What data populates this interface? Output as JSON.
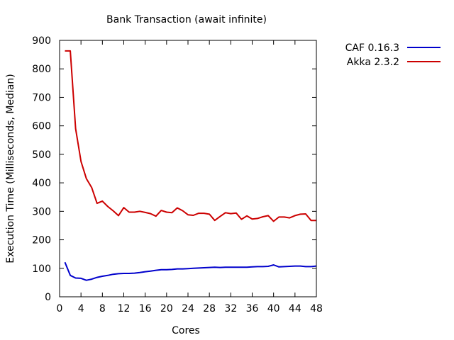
{
  "chart_data": {
    "type": "line",
    "title": "Bank Transaction (await infinite)",
    "xlabel": "Cores",
    "ylabel": "Execution Time (Milliseconds, Median)",
    "xlim": [
      0,
      48
    ],
    "ylim": [
      0,
      900
    ],
    "xticks": [
      0,
      4,
      8,
      12,
      16,
      20,
      24,
      28,
      32,
      36,
      40,
      44,
      48
    ],
    "yticks": [
      0,
      100,
      200,
      300,
      400,
      500,
      600,
      700,
      800,
      900
    ],
    "grid": false,
    "legend_position": "outside-top-right",
    "series": [
      {
        "name": "CAF 0.16.3",
        "color": "#0000cc",
        "x": [
          1,
          2,
          3,
          4,
          5,
          6,
          7,
          8,
          9,
          10,
          11,
          12,
          13,
          14,
          15,
          16,
          17,
          18,
          19,
          20,
          21,
          22,
          23,
          24,
          25,
          26,
          27,
          28,
          29,
          30,
          31,
          32,
          33,
          34,
          35,
          36,
          37,
          38,
          39,
          40,
          41,
          42,
          43,
          44,
          45,
          46,
          47,
          48
        ],
        "y": [
          121,
          75,
          66,
          65,
          58,
          62,
          68,
          72,
          75,
          79,
          81,
          82,
          82,
          83,
          85,
          88,
          90,
          93,
          95,
          95,
          96,
          98,
          98,
          99,
          100,
          101,
          102,
          103,
          104,
          103,
          104,
          104,
          104,
          104,
          104,
          105,
          106,
          106,
          107,
          112,
          105,
          106,
          107,
          108,
          108,
          106,
          106,
          108
        ]
      },
      {
        "name": "Akka 2.3.2",
        "color": "#cc0000",
        "x": [
          1,
          2,
          3,
          4,
          5,
          6,
          7,
          8,
          9,
          10,
          11,
          12,
          13,
          14,
          15,
          16,
          17,
          18,
          19,
          20,
          21,
          22,
          23,
          24,
          25,
          26,
          27,
          28,
          29,
          30,
          31,
          32,
          33,
          34,
          35,
          36,
          37,
          38,
          39,
          40,
          41,
          42,
          43,
          44,
          45,
          46,
          47,
          48
        ],
        "y": [
          863,
          863,
          590,
          475,
          415,
          383,
          328,
          336,
          317,
          302,
          285,
          313,
          297,
          297,
          300,
          296,
          292,
          283,
          303,
          297,
          295,
          312,
          302,
          288,
          286,
          293,
          293,
          290,
          268,
          282,
          295,
          292,
          294,
          272,
          284,
          273,
          275,
          281,
          285,
          265,
          280,
          280,
          277,
          285,
          290,
          291,
          268,
          268
        ]
      }
    ]
  }
}
